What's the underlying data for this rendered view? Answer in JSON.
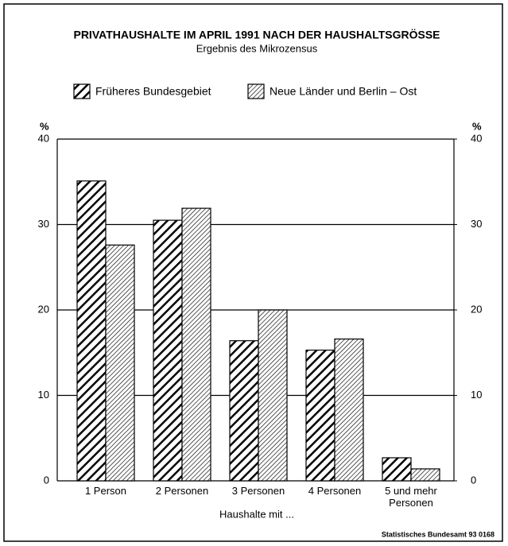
{
  "chart_data": {
    "type": "bar",
    "title": "PRIVATHAUSHALTE IM APRIL 1991 NACH DER HAUSHALTSGRÖSSE",
    "subtitle": "Ergebnis des Mikrozensus",
    "categories": [
      "1 Person",
      "2 Personen",
      "3 Personen",
      "4 Personen",
      "5 und mehr Personen"
    ],
    "series": [
      {
        "name": "Früheres Bundesgebiet",
        "color": "#000000",
        "values": [
          35.1,
          30.5,
          16.4,
          15.3,
          2.7
        ]
      },
      {
        "name": "Neue Länder und Berlin – Ost",
        "color": "#000000",
        "values": [
          27.6,
          31.9,
          20.0,
          16.6,
          1.4
        ]
      }
    ],
    "ylabel": "%",
    "y2label": "%",
    "xlabel": "Haushalte mit ...",
    "ylim": [
      0,
      40
    ],
    "yticks": [
      0,
      10,
      20,
      30,
      40
    ],
    "y2lim": [
      0,
      40
    ],
    "y2ticks": [
      0,
      10,
      20,
      30,
      40
    ],
    "grid": true,
    "source": "Statistisches Bundesamt 93 0168"
  }
}
